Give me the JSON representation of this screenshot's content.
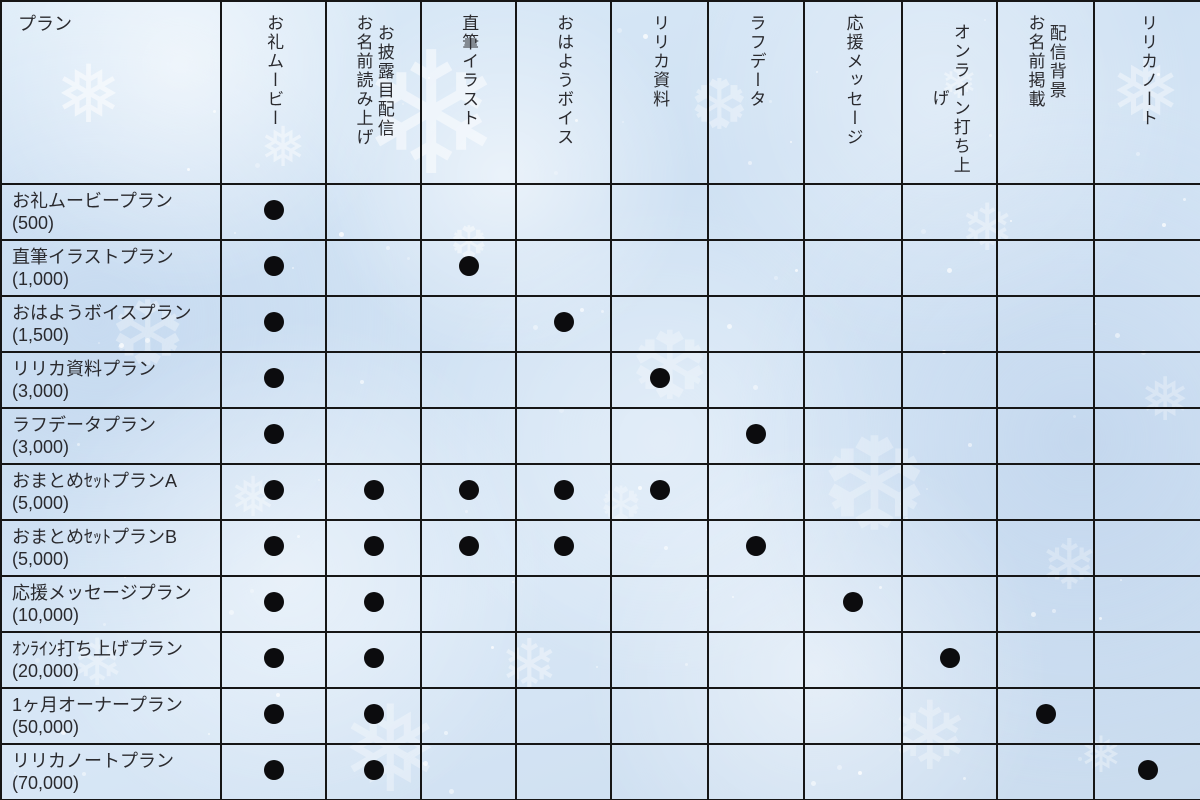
{
  "table": {
    "corner_label": "プラン",
    "dot_symbol": "●",
    "feature_columns": [
      {
        "label": "お礼ムービー",
        "lines": [
          "お礼ムービー"
        ]
      },
      {
        "label": "お披露目配信 お名前読み上げ",
        "lines": [
          "お披露目配信",
          "お名前読み上げ"
        ]
      },
      {
        "label": "直筆イラスト",
        "lines": [
          "直筆イラスト"
        ]
      },
      {
        "label": "おはようボイス",
        "lines": [
          "おはようボイス"
        ]
      },
      {
        "label": "リリカ資料",
        "lines": [
          "リリカ資料"
        ]
      },
      {
        "label": "ラフデータ",
        "lines": [
          "ラフデータ"
        ]
      },
      {
        "label": "応援メッセージ",
        "lines": [
          "応援メッセージ"
        ]
      },
      {
        "label": "オンライン打ち上げ",
        "lines": [
          "オンライン打ち上げ"
        ]
      },
      {
        "label": "配信背景 お名前掲載",
        "lines": [
          "配信背景",
          "お名前掲載"
        ]
      },
      {
        "label": "リリカノート",
        "lines": [
          "リリカノート"
        ]
      }
    ],
    "rows": [
      {
        "plan": "お礼ムービープラン",
        "price": "(500)",
        "features": [
          1,
          0,
          0,
          0,
          0,
          0,
          0,
          0,
          0,
          0
        ]
      },
      {
        "plan": "直筆イラストプラン",
        "price": "(1,000)",
        "features": [
          1,
          0,
          1,
          0,
          0,
          0,
          0,
          0,
          0,
          0
        ]
      },
      {
        "plan": "おはようボイスプラン",
        "price": "(1,500)",
        "features": [
          1,
          0,
          0,
          1,
          0,
          0,
          0,
          0,
          0,
          0
        ]
      },
      {
        "plan": "リリカ資料プラン",
        "price": "(3,000)",
        "features": [
          1,
          0,
          0,
          0,
          1,
          0,
          0,
          0,
          0,
          0
        ]
      },
      {
        "plan": "ラフデータプラン",
        "price": "(3,000)",
        "features": [
          1,
          0,
          0,
          0,
          0,
          1,
          0,
          0,
          0,
          0
        ]
      },
      {
        "plan": "おまとめｾｯﾄプランA",
        "price": "(5,000)",
        "features": [
          1,
          1,
          1,
          1,
          1,
          0,
          0,
          0,
          0,
          0
        ]
      },
      {
        "plan": "おまとめｾｯﾄプランB",
        "price": "(5,000)",
        "features": [
          1,
          1,
          1,
          1,
          0,
          1,
          0,
          0,
          0,
          0
        ]
      },
      {
        "plan": "応援メッセージプラン",
        "price": "(10,000)",
        "features": [
          1,
          1,
          0,
          0,
          0,
          0,
          1,
          0,
          0,
          0
        ]
      },
      {
        "plan": "ｵﾝﾗｲﾝ打ち上げプラン",
        "price": "(20,000)",
        "features": [
          1,
          1,
          0,
          0,
          0,
          0,
          0,
          1,
          0,
          0
        ]
      },
      {
        "plan": "1ヶ月オーナープラン",
        "price": "(50,000)",
        "features": [
          1,
          1,
          0,
          0,
          0,
          0,
          0,
          0,
          1,
          0
        ]
      },
      {
        "plan": "リリカノートプラン",
        "price": "(70,000)",
        "features": [
          1,
          1,
          0,
          0,
          0,
          0,
          0,
          0,
          0,
          1
        ]
      }
    ]
  }
}
